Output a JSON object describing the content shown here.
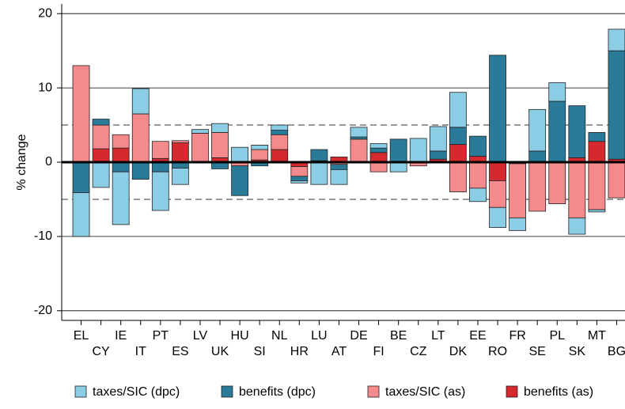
{
  "chart_data": {
    "type": "stacked-bar",
    "ylabel": "% change",
    "categories": [
      "EL",
      "CY",
      "IE",
      "IT",
      "PT",
      "ES",
      "LV",
      "UK",
      "HU",
      "SI",
      "NL",
      "HR",
      "LU",
      "AT",
      "DE",
      "FI",
      "BE",
      "CZ",
      "LT",
      "DK",
      "EE",
      "RO",
      "FR",
      "SE",
      "PL",
      "SK",
      "MT",
      "BG"
    ],
    "series": [
      {
        "name": "benefits (as)",
        "color": "#d42a2f",
        "values": [
          0,
          1.8,
          1.9,
          0,
          0.5,
          2.6,
          0,
          0.6,
          0,
          0.3,
          1.7,
          -0.6,
          0.2,
          0.7,
          0,
          1.3,
          0,
          0,
          0.4,
          2.4,
          0.8,
          -2.5,
          -0.2,
          0,
          0,
          0.6,
          2.8,
          0.4
        ]
      },
      {
        "name": "taxes/SIC (as)",
        "color": "#f58a8c",
        "values": [
          13,
          3.2,
          1.8,
          6.5,
          2.3,
          0.3,
          3.9,
          3.4,
          -0.5,
          1.4,
          2.0,
          -1.3,
          0,
          -0.3,
          3.1,
          -1.3,
          0,
          -0.5,
          0,
          -4.0,
          -3.5,
          -3.6,
          -7.3,
          -6.6,
          -5.6,
          -7.5,
          -6.4,
          -4.8
        ]
      },
      {
        "name": "benefits (dpc)",
        "color": "#2a7b9a",
        "values": [
          -4.1,
          0.8,
          -1.3,
          -2.3,
          -1.3,
          -0.8,
          0,
          -0.9,
          -4.0,
          -0.5,
          0.6,
          -0.6,
          1.5,
          -0.7,
          0.3,
          0.6,
          3.1,
          0,
          1.1,
          2.3,
          2.7,
          14.4,
          0,
          1.5,
          8.2,
          7.0,
          1.2,
          14.6
        ]
      },
      {
        "name": "taxes/SIC (dpc)",
        "color": "#8ccde6",
        "values": [
          -5.9,
          -3.4,
          -7.1,
          3.4,
          -5.2,
          -2.2,
          0.5,
          1.2,
          2.0,
          0.6,
          0.7,
          -0.3,
          -3.0,
          -2.0,
          1.3,
          0.6,
          -1.3,
          3.2,
          3.3,
          4.7,
          -1.8,
          -2.7,
          -1.7,
          5.6,
          2.5,
          -2.2,
          -0.3,
          2.9
        ]
      }
    ],
    "ylim": [
      -21.3,
      21.3
    ],
    "yticks": [
      -20,
      -10,
      0,
      10,
      20
    ],
    "grid": true,
    "hlines": [
      -5,
      5
    ],
    "legend": "bottom"
  }
}
